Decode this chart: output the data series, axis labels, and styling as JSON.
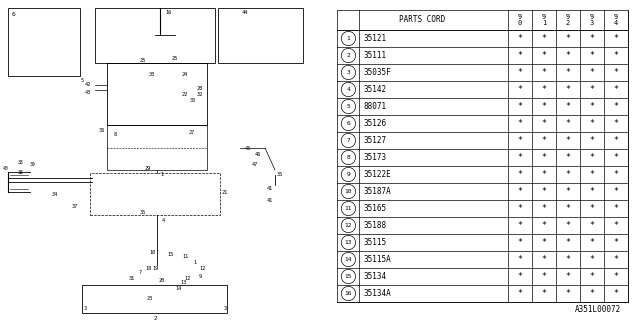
{
  "diagram_code": "A351L00072",
  "bg_color": "#ffffff",
  "line_color": "#000000",
  "text_color": "#000000",
  "header_years": [
    "9\n0",
    "9\n1",
    "9\n2",
    "9\n3",
    "9\n4"
  ],
  "rows": [
    [
      "1",
      "35121",
      "*",
      "*",
      "*",
      "*",
      "*"
    ],
    [
      "2",
      "35111",
      "*",
      "*",
      "*",
      "*",
      "*"
    ],
    [
      "3",
      "35035F",
      "*",
      "*",
      "*",
      "*",
      "*"
    ],
    [
      "4",
      "35142",
      "*",
      "*",
      "*",
      "*",
      "*"
    ],
    [
      "5",
      "88071",
      "*",
      "*",
      "*",
      "*",
      "*"
    ],
    [
      "6",
      "35126",
      "*",
      "*",
      "*",
      "*",
      "*"
    ],
    [
      "7",
      "35127",
      "*",
      "*",
      "*",
      "*",
      "*"
    ],
    [
      "8",
      "35173",
      "*",
      "*",
      "*",
      "*",
      "*"
    ],
    [
      "9",
      "35122E",
      "*",
      "*",
      "*",
      "*",
      "*"
    ],
    [
      "10",
      "35187A",
      "*",
      "*",
      "*",
      "*",
      "*"
    ],
    [
      "11",
      "35165",
      "*",
      "*",
      "*",
      "*",
      "*"
    ],
    [
      "12",
      "35188",
      "*",
      "*",
      "*",
      "*",
      "*"
    ],
    [
      "13",
      "35115",
      "*",
      "*",
      "*",
      "*",
      "*"
    ],
    [
      "14",
      "35115A",
      "*",
      "*",
      "*",
      "*",
      "*"
    ],
    [
      "15",
      "35134",
      "*",
      "*",
      "*",
      "*",
      "*"
    ],
    [
      "16",
      "35134A",
      "*",
      "*",
      "*",
      "*",
      "*"
    ]
  ]
}
